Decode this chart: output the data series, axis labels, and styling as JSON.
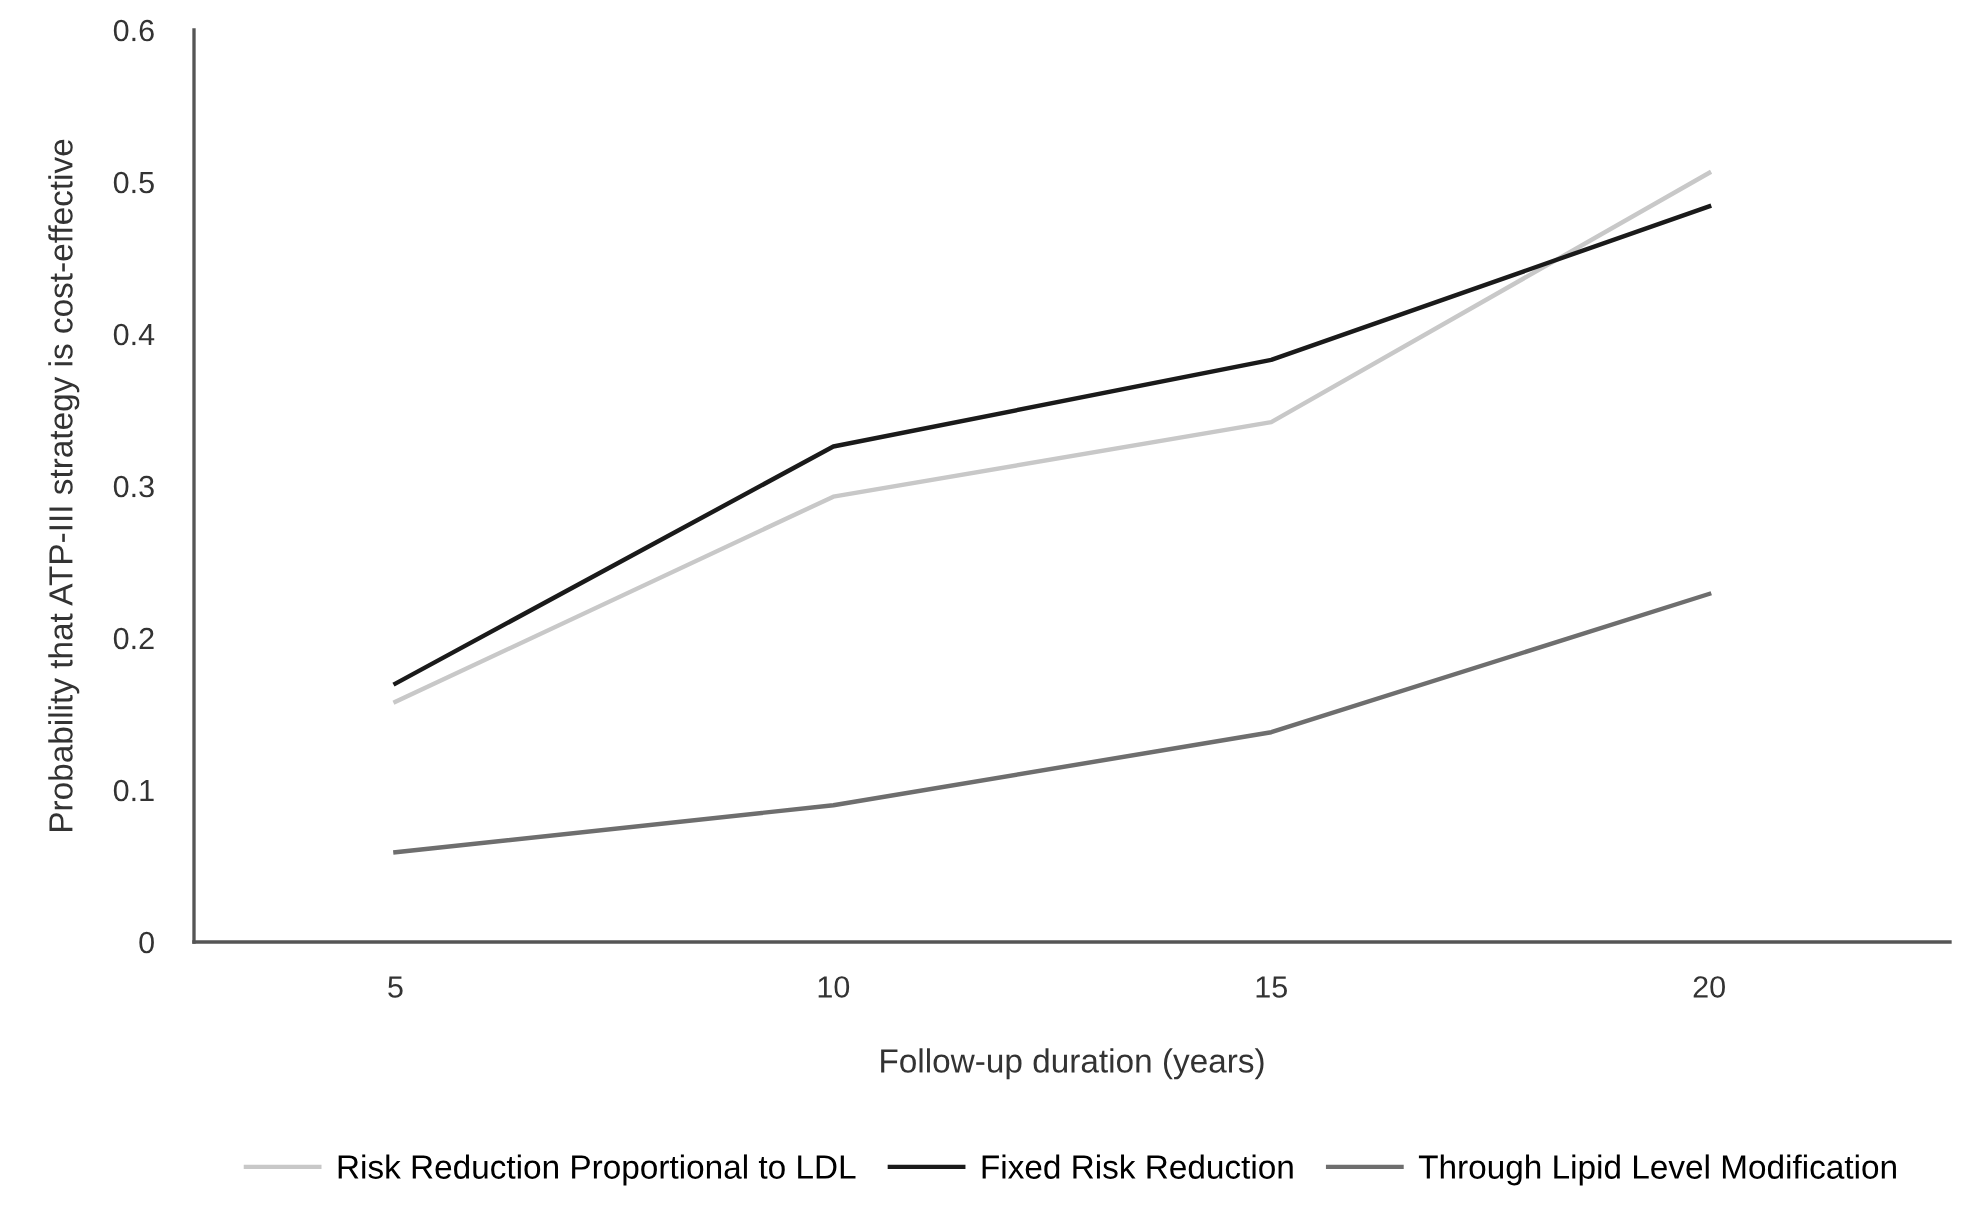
{
  "chart_data": {
    "type": "line",
    "xlabel": "Follow-up duration (years)",
    "ylabel": "Probability that ATP-III strategy is cost-effective",
    "categories": [
      "5",
      "10",
      "15",
      "20"
    ],
    "series": [
      {
        "name": "Risk Reduction Proportional to LDL",
        "color": "#c8c8c8",
        "values": [
          0.158,
          0.293,
          0.342,
          0.506
        ]
      },
      {
        "name": "Fixed Risk Reduction",
        "color": "#1a1a1a",
        "values": [
          0.17,
          0.326,
          0.383,
          0.484
        ]
      },
      {
        "name": "Through Lipid Level Modification",
        "color": "#6e6e6e",
        "values": [
          0.059,
          0.09,
          0.138,
          0.229
        ]
      }
    ],
    "ylim": [
      0,
      0.6
    ],
    "yticks": [
      {
        "value": 0,
        "label": "0"
      },
      0.1,
      0.2,
      0.3,
      0.4,
      0.5,
      0.6
    ],
    "grid": false,
    "legend": "bottom",
    "marker": "none",
    "line_style": "solid"
  }
}
